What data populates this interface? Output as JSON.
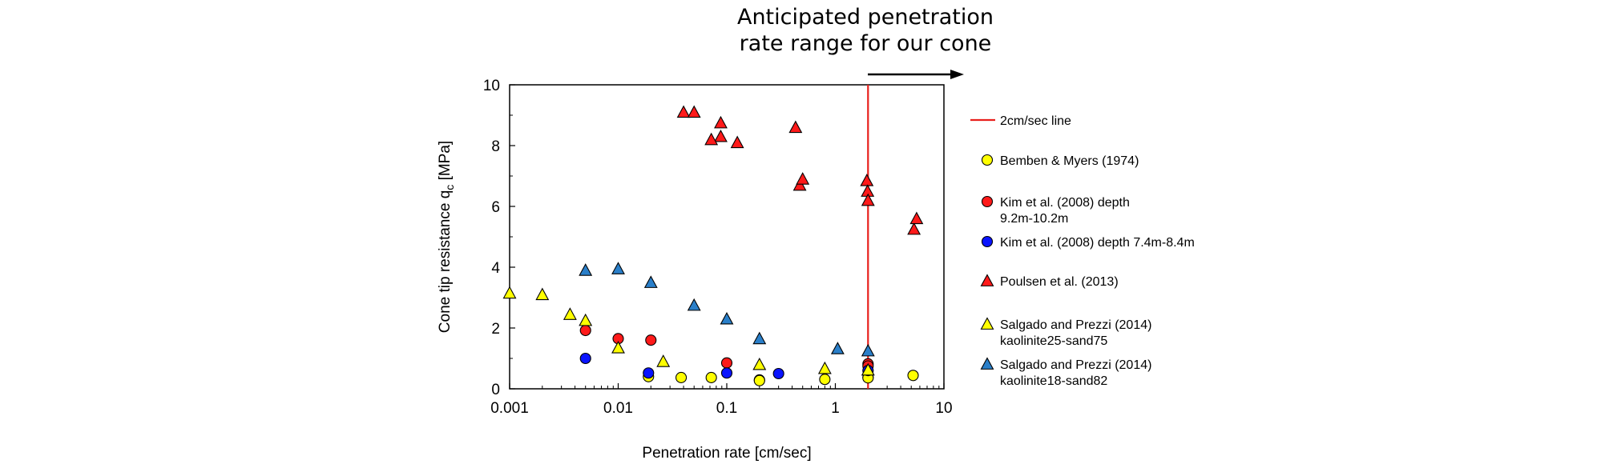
{
  "chart_data": {
    "type": "scatter",
    "annotation": [
      "Anticipated penetration",
      "rate range for our cone"
    ],
    "xlabel": "Penetration rate [cm/sec]",
    "ylabel": "Cone tip resistance q",
    "ylabel_sub": "c",
    "ylabel_unit": " [MPa]",
    "xscale": "log",
    "xlim": [
      0.001,
      10
    ],
    "ylim": [
      0,
      10
    ],
    "x_ticks": [
      0.001,
      0.01,
      0.1,
      1,
      10
    ],
    "x_tick_labels": [
      "0.001",
      "0.01",
      "0.1",
      "1",
      "10"
    ],
    "y_ticks": [
      0,
      2,
      4,
      6,
      8,
      10
    ],
    "y_tick_labels": [
      "0",
      "2",
      "4",
      "6",
      "8",
      "10"
    ],
    "grid": false,
    "legend_position": "right",
    "vline": {
      "name": "2cm/sec line",
      "x": 2,
      "color": "#e8201c"
    },
    "series": [
      {
        "name": "Bemben & Myers (1974)",
        "marker": "circle",
        "color": "#ffff00",
        "x": [
          0.019,
          0.038,
          0.072,
          0.2,
          0.2,
          0.8,
          2,
          2,
          5.2
        ],
        "y": [
          0.4,
          0.37,
          0.37,
          0.29,
          0.27,
          0.31,
          0.38,
          0.36,
          0.44
        ]
      },
      {
        "name": "Kim et al. (2008) depth 9.2m-10.2m",
        "marker": "circle",
        "color": "#ff1a1a",
        "x": [
          0.005,
          0.01,
          0.02,
          0.1,
          2,
          2
        ],
        "y": [
          1.92,
          1.65,
          1.6,
          0.85,
          0.82,
          0.75
        ]
      },
      {
        "name": "Kim et al. (2008) depth 7.4m-8.4m",
        "marker": "circle",
        "color": "#0a14ff",
        "x": [
          0.005,
          0.019,
          0.1,
          0.3,
          2
        ],
        "y": [
          1.0,
          0.52,
          0.52,
          0.5,
          0.6
        ]
      },
      {
        "name": "Poulsen et al. (2013)",
        "marker": "triangle",
        "color": "#ff1a1a",
        "x": [
          0.04,
          0.05,
          0.088,
          0.088,
          0.072,
          0.125,
          0.43,
          0.47,
          0.5,
          1.95,
          1.98,
          2.0,
          5.3,
          5.6
        ],
        "y": [
          9.1,
          9.1,
          8.75,
          8.3,
          8.2,
          8.1,
          8.6,
          6.7,
          6.9,
          6.85,
          6.5,
          6.2,
          5.25,
          5.6
        ]
      },
      {
        "name": "Salgado and Prezzi (2014) kaolinite25-sand75",
        "marker": "triangle",
        "color": "#ffff00",
        "x": [
          0.001,
          0.002,
          0.0036,
          0.005,
          0.01,
          0.026,
          0.2,
          0.8,
          2.0
        ],
        "y": [
          3.15,
          3.1,
          2.45,
          2.25,
          1.35,
          0.9,
          0.8,
          0.67,
          0.62
        ]
      },
      {
        "name": "Salgado and Prezzi (2014) kaolinite18-sand82",
        "marker": "triangle",
        "color": "#2a7fc9",
        "x": [
          0.005,
          0.01,
          0.02,
          0.05,
          0.1,
          0.2,
          1.05,
          2.0
        ],
        "y": [
          3.9,
          3.95,
          3.5,
          2.75,
          2.3,
          1.65,
          1.32,
          1.25
        ]
      }
    ]
  }
}
